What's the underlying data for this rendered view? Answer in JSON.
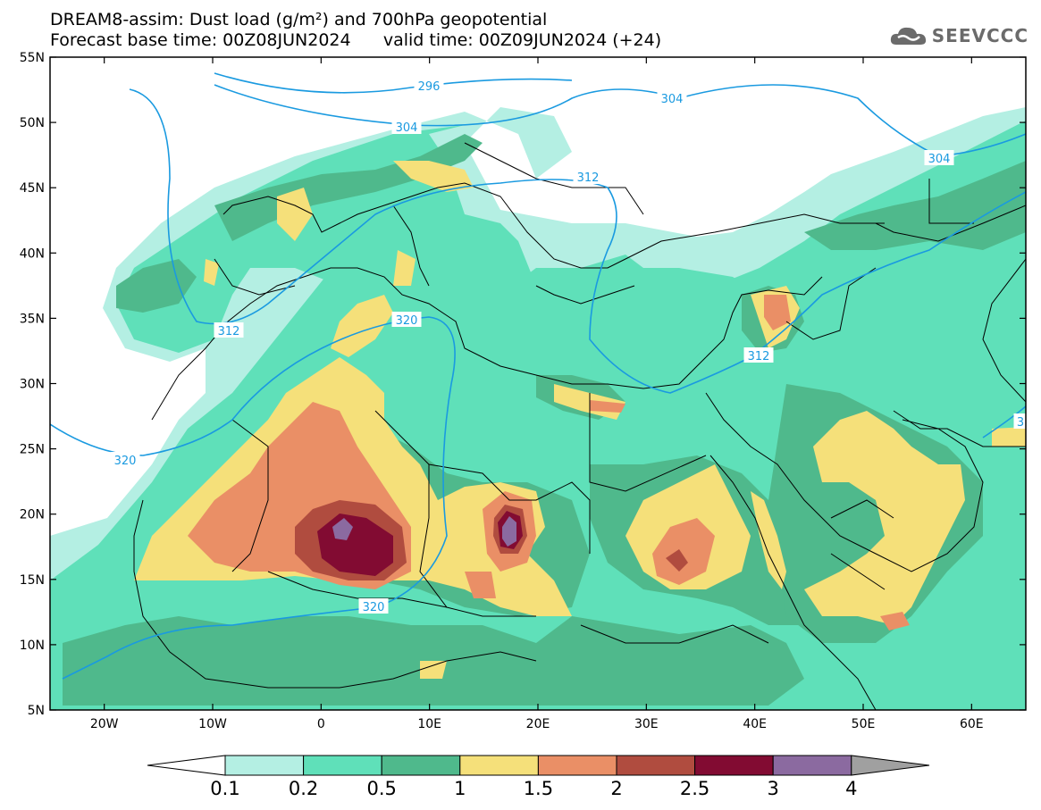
{
  "title_line1": "DREAM8-assim: Dust load (g/m²) and 700hPa geopotential",
  "title_line2": "Forecast base time: 00Z08JUN2024      valid time: 00Z09JUN2024 (+24)",
  "logo_text": "SEEVCCC",
  "logo_icon": "cloud-icon",
  "map": {
    "lon_range": [
      -25,
      65
    ],
    "lat_range": [
      5,
      55
    ],
    "lon_ticks": [
      "20W",
      "10W",
      "0",
      "10E",
      "20E",
      "30E",
      "40E",
      "50E",
      "60E"
    ],
    "lat_ticks": [
      "55N",
      "50N",
      "45N",
      "40N",
      "35N",
      "30N",
      "25N",
      "20N",
      "15N",
      "10N",
      "5N"
    ],
    "contour_labels": [
      "296",
      "304",
      "304",
      "304",
      "312",
      "312",
      "312",
      "320",
      "320",
      "320",
      "3"
    ],
    "contour_color": "#1a9ae0"
  },
  "colorbar": {
    "levels": [
      "0.1",
      "0.2",
      "0.5",
      "1",
      "1.5",
      "2",
      "2.5",
      "3",
      "4"
    ],
    "colors": [
      "#ffffff",
      "#b4efe3",
      "#5fe0b9",
      "#4fb98c",
      "#f5e07a",
      "#ea8f66",
      "#b04c3f",
      "#820b32",
      "#8b6aa0",
      "#a0a0a0"
    ]
  }
}
